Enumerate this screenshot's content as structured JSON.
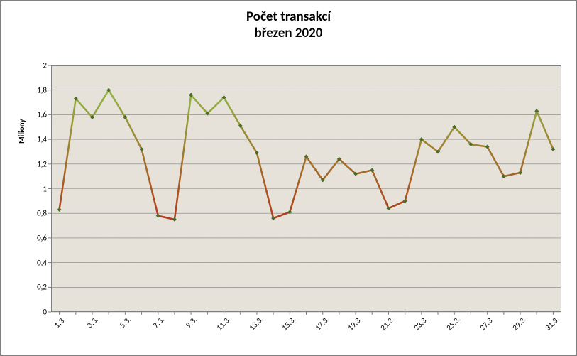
{
  "chart": {
    "type": "line",
    "title_line1": "Počet transakcí",
    "title_line2": "březen 2020",
    "title_fontsize": 19,
    "ylabel": "Miliony",
    "ylabel_fontsize": 11,
    "tick_fontsize": 11,
    "ylim": [
      0,
      2
    ],
    "ytick_step": 0.2,
    "yticks": [
      "0",
      "0,2",
      "0,4",
      "0,6",
      "0,8",
      "1",
      "1,2",
      "1,4",
      "1,6",
      "1,8",
      "2"
    ],
    "xticks": [
      "1.3.",
      "3.3.",
      "5.3.",
      "7.3.",
      "9.3.",
      "11.3.",
      "13.3.",
      "15.3.",
      "17.3.",
      "19.3.",
      "21.3.",
      "23.3.",
      "25.3.",
      "27.3.",
      "29.3.",
      "31.3."
    ],
    "xtick_rotation_deg": -45,
    "n_points": 31,
    "values": [
      0.83,
      1.73,
      1.58,
      1.8,
      1.58,
      1.32,
      0.78,
      0.75,
      1.76,
      1.61,
      1.74,
      1.51,
      1.29,
      0.76,
      0.81,
      1.26,
      1.07,
      1.24,
      1.12,
      1.15,
      0.84,
      0.9,
      1.4,
      1.3,
      1.5,
      1.36,
      1.34,
      1.1,
      1.13,
      1.63,
      1.32
    ],
    "line_width": 2.5,
    "marker_style": "diamond",
    "marker_size": 6,
    "marker_color": "#4a6b2a",
    "color_high": "#8fb843",
    "color_low": "#b33a1a",
    "color_gradient_min_value": 0.75,
    "color_gradient_max_value": 1.8,
    "background_texture_base": "#e8e4dc",
    "background_noise_color": "#b8b2a4",
    "plot_border_color": "#808080",
    "grid_color": "#808080",
    "text_color": "#000000"
  }
}
